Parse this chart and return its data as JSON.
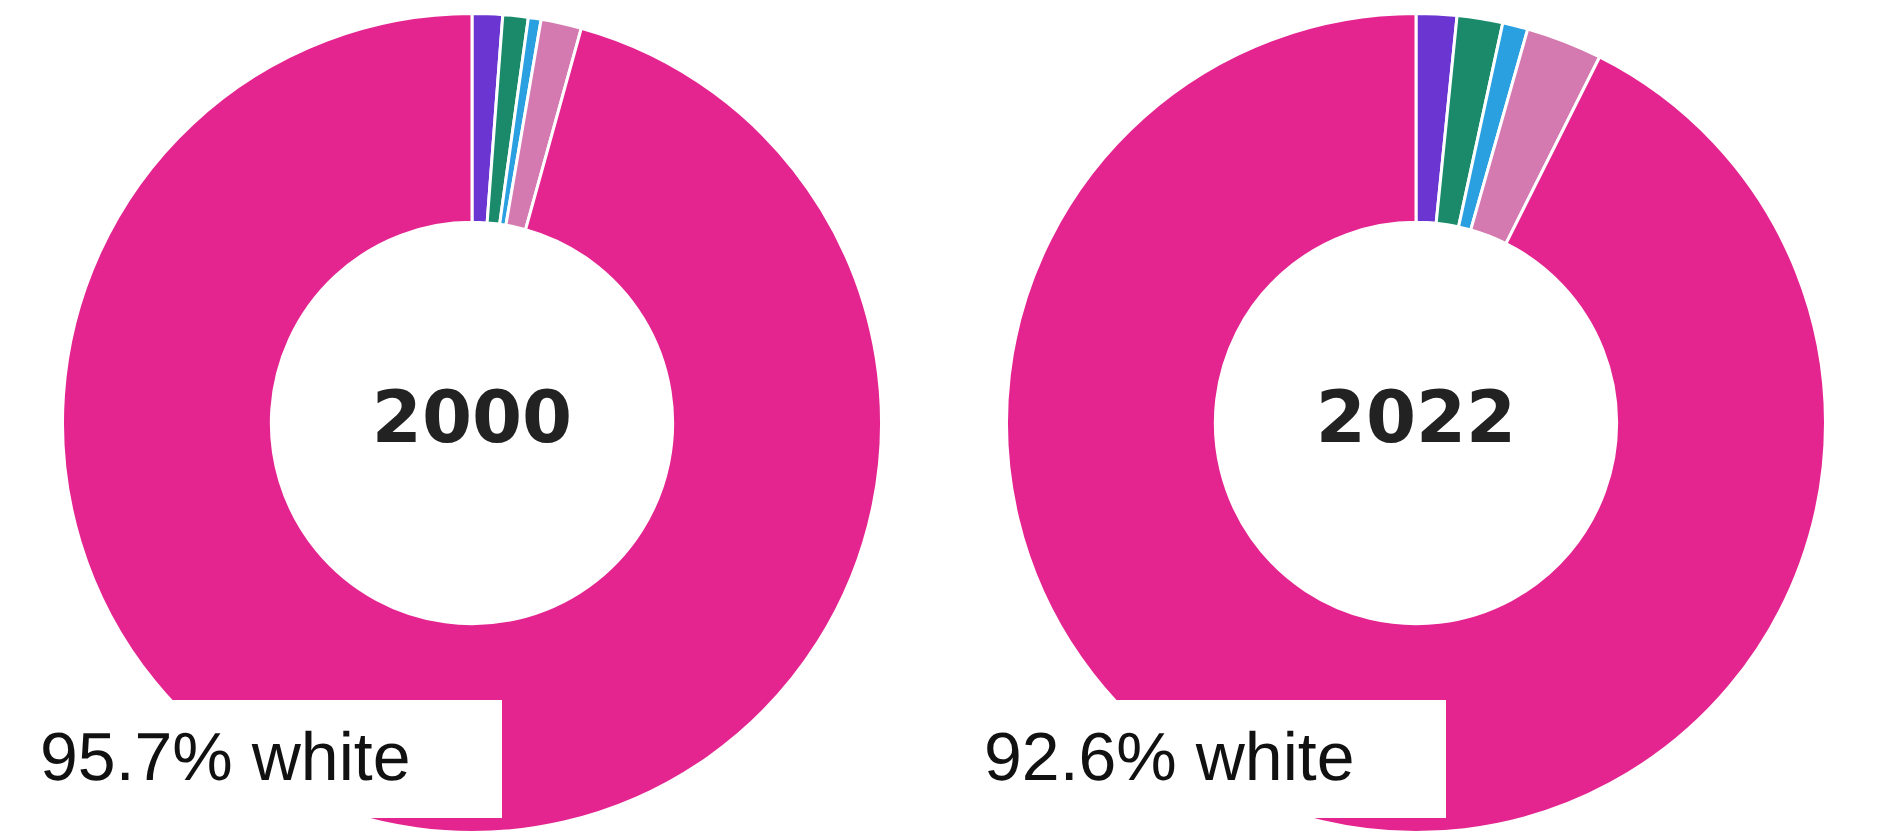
{
  "chart_data": [
    {
      "type": "donut",
      "title": "2000",
      "categories": [
        null,
        null,
        null,
        null,
        null
      ],
      "values": [
        1.2,
        1.0,
        0.5,
        1.6,
        95.7
      ],
      "colors": [
        "#6a35d0",
        "#1a8a6a",
        "#2aa0e0",
        "#d47ab0",
        "#e42590"
      ],
      "annotations": [
        "95.7% white"
      ]
    },
    {
      "type": "donut",
      "title": "2022",
      "categories": [
        null,
        null,
        null,
        null,
        null
      ],
      "values": [
        1.6,
        1.8,
        1.0,
        3.0,
        92.6
      ],
      "colors": [
        "#6a35d0",
        "#1a8a6a",
        "#2aa0e0",
        "#d47ab0",
        "#e42590"
      ],
      "annotations": [
        "92.6% white"
      ]
    }
  ]
}
